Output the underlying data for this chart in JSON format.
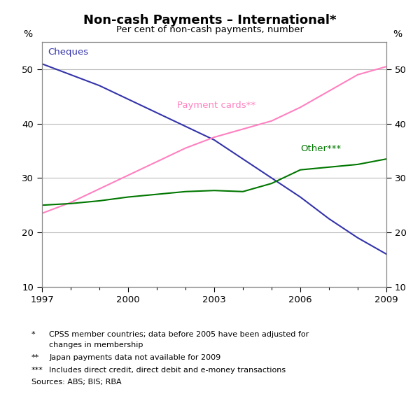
{
  "title": "Non-cash Payments – International*",
  "subtitle": "Per cent of non-cash payments, number",
  "ylim": [
    10,
    55
  ],
  "yticks": [
    10,
    20,
    30,
    40,
    50
  ],
  "years_cheques": [
    1997,
    1998,
    1999,
    2000,
    2001,
    2002,
    2003,
    2004,
    2005,
    2006,
    2007,
    2008,
    2009
  ],
  "cheques": [
    51.0,
    49.0,
    47.0,
    44.5,
    42.0,
    39.5,
    37.0,
    33.5,
    30.0,
    26.5,
    22.5,
    19.0,
    16.0
  ],
  "years_cards": [
    1997,
    1998,
    1999,
    2000,
    2001,
    2002,
    2003,
    2004,
    2005,
    2006,
    2007,
    2008,
    2009
  ],
  "cards": [
    23.5,
    25.5,
    28.0,
    30.5,
    33.0,
    35.5,
    37.5,
    39.0,
    40.5,
    43.0,
    46.0,
    49.0,
    50.5
  ],
  "years_other": [
    1997,
    1998,
    1999,
    2000,
    2001,
    2002,
    2003,
    2004,
    2005,
    2006,
    2007,
    2008,
    2009
  ],
  "other": [
    25.0,
    25.3,
    25.8,
    26.5,
    27.0,
    27.5,
    27.7,
    27.5,
    29.0,
    31.5,
    32.0,
    32.5,
    33.5
  ],
  "color_cheques": "#3333AA",
  "color_cards": "#FF80C0",
  "color_other": "#007700",
  "label_cheques": "Cheques",
  "label_cards": "Payment cards**",
  "label_other": "Other***",
  "xticks_major": [
    1997,
    2000,
    2003,
    2006,
    2009
  ],
  "xlim": [
    1997,
    2009
  ],
  "bg_color": "#ffffff",
  "grid_color": "#bbbbbb",
  "footnote1": "CPSS member countries; data before 2005 have been adjusted for\n      changes in membership",
  "footnote2": "Japan payments data not available for 2009",
  "footnote3": "Includes direct credit, direct debit and e-money transactions",
  "sources": "Sources: ABS; BIS; RBA"
}
